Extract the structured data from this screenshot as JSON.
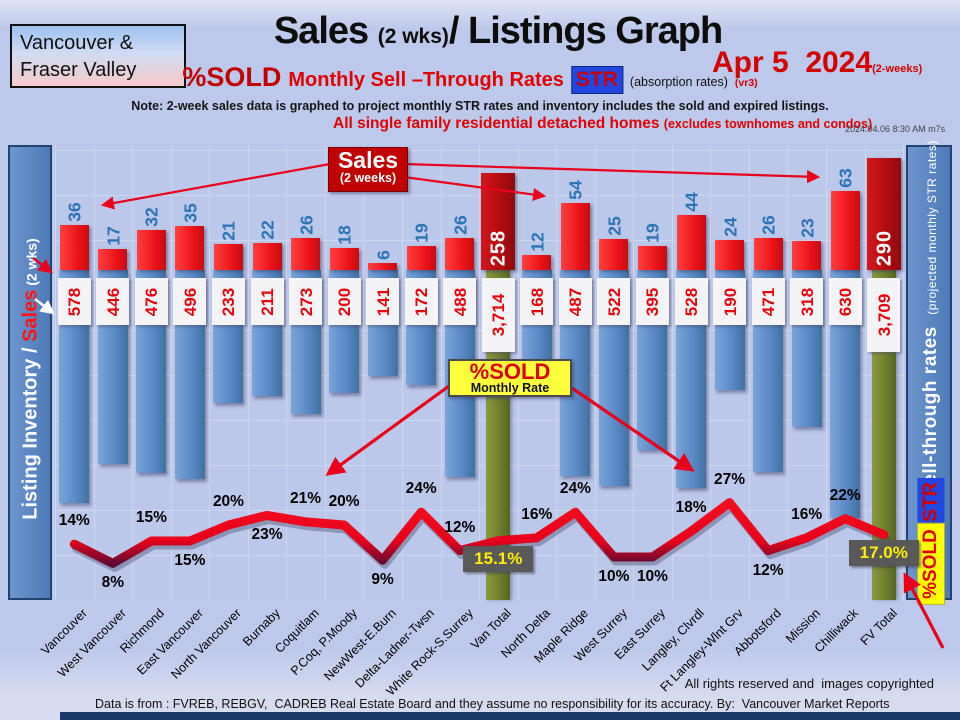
{
  "header": {
    "logo_line1": "Vancouver &",
    "logo_line2": "Fraser Valley",
    "title_sales": "Sales",
    "title_wks": "(2 wks)",
    "title_rest": "/ Listings Graph",
    "date": "Apr 5  2024",
    "date_note": "(2-weeks)",
    "pct_sold": "%SOLD",
    "str_phrase": "Monthly Sell –Through Rates",
    "str_badge": "STR",
    "absorption": "(absorption rates)",
    "version": "(vr3)",
    "note": "Note: 2-week sales data is graphed to project monthly  STR rates and inventory includes the sold and expired listings.",
    "scope": "All single family residential detached homes",
    "scope_paren": "(excludes townhomes and condos)",
    "timestamp": "2024.04.06 8:30 AM m7s"
  },
  "left_axis": {
    "pre": "Listing Inventory / ",
    "accent": "Sales",
    "post": " (2  wks)"
  },
  "right_axis": {
    "main": "Sell-through  rates",
    "sub": "(projected monthly STR rates)",
    "str_box": "STR",
    "pctsold_box": "%SOLD"
  },
  "annotations": {
    "sales_box_title": "Sales",
    "sales_box_sub": "(2 weeks)",
    "pctsold_box_title": "%SOLD",
    "pctsold_box_sub": "Monthly Rate"
  },
  "footer": {
    "rights": "All rights reserved and  images copyrighted",
    "source": "Data is from : FVREB, REBGV,  CADREB Real Estate Board and they assume no responsibility for its accuracy. By:  Vancouver Market Reports"
  },
  "colors": {
    "sales_bar": "#ee1c25",
    "total_sales_bar": "#b00c10",
    "inventory_bar": "#5b8ac5",
    "total_inventory_bar": "#6d7d2d",
    "line": "#e8001c",
    "line_valley": "#10123f",
    "sales_value_text": "#2e74b5",
    "inventory_value_text": "#e8000d",
    "highlight_box_bg": "#595959",
    "highlight_box_text": "#ffee00"
  },
  "chart_data": {
    "type": "bar",
    "title": "Sales (2 wks)/ Listings Graph",
    "xlabel": "",
    "ylabel_left": "Listing Inventory / Sales (2 wks)",
    "ylabel_right": "Sell-through rates (projected monthly STR rates)",
    "grid": true,
    "categories": [
      "Vancouver",
      "West Vancouver",
      "Richmond",
      "East Vancouver",
      "North Vancouver",
      "Burnaby",
      "Coquitlam",
      "P.Coq, P.Moody",
      "NewWest-E.Burn",
      "Delta-Ladner-Twsn",
      "White Rock-S.Surrey",
      "Van Total",
      "North Delta",
      "Maple Ridge",
      "West Surrey",
      "East Surrey",
      "Langley, Clvrdl",
      "Ft Langley-Wlnt Grv",
      "Abbotsford",
      "Mission",
      "Chilliwack",
      "FV Total"
    ],
    "series": [
      {
        "name": "Sales (2 weeks)",
        "type": "bar",
        "values": [
          36,
          17,
          32,
          35,
          21,
          22,
          26,
          18,
          6,
          19,
          26,
          258,
          12,
          54,
          25,
          19,
          44,
          24,
          26,
          23,
          63,
          290
        ]
      },
      {
        "name": "Listing Inventory (includes sold and expired)",
        "type": "bar",
        "values": [
          578,
          446,
          476,
          496,
          233,
          211,
          273,
          200,
          141,
          172,
          488,
          3714,
          168,
          487,
          522,
          395,
          528,
          190,
          471,
          318,
          630,
          3709
        ],
        "labels": [
          "578",
          "446",
          "476",
          "496",
          "233",
          "211",
          "273",
          "200",
          "141",
          "172",
          "488",
          "3,714",
          "168",
          "487",
          "522",
          "395",
          "528",
          "190",
          "471",
          "318",
          "630",
          "3,709"
        ]
      },
      {
        "name": "%SOLD monthly sell-through rate",
        "type": "line",
        "values": [
          14,
          8,
          15,
          15,
          20,
          23,
          21,
          20,
          9,
          24,
          12,
          15.1,
          16,
          24,
          10,
          10,
          18,
          27,
          12,
          16,
          22,
          17.0
        ],
        "labels": [
          "14%",
          "8%",
          "15%",
          "15%",
          "20%",
          "23%",
          "21%",
          "20%",
          "9%",
          "24%",
          "12%",
          "15.1%",
          "16%",
          "24%",
          "10%",
          "10%",
          "18%",
          "27%",
          "12%",
          "16%",
          "22%",
          "17.0%"
        ],
        "label_side": [
          "above",
          "below",
          "above",
          "below",
          "above",
          "below",
          "above",
          "above",
          "below",
          "above",
          "above",
          "box",
          "above",
          "above",
          "below",
          "below",
          "above",
          "above",
          "below",
          "above",
          "above",
          "box"
        ]
      }
    ],
    "total_columns": [
      11,
      21
    ],
    "legend_position": "none"
  }
}
